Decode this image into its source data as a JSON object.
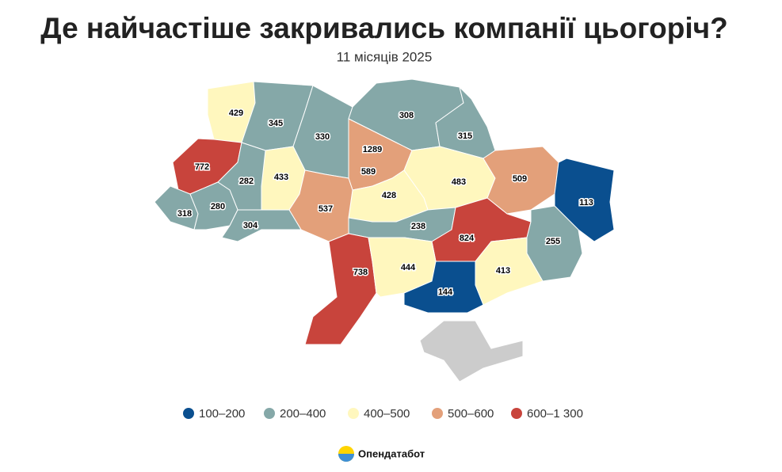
{
  "title": "Де найчастіше закривались компанії цьогоріч?",
  "subtitle": "11 місяців 2025",
  "regions": [
    {
      "value": 429,
      "color": "#fff7be"
    },
    {
      "value": 345,
      "color": "#85a8a8"
    },
    {
      "value": 330,
      "color": "#85a8a8"
    },
    {
      "value": 308,
      "color": "#85a8a8"
    },
    {
      "value": 315,
      "color": "#85a8a8"
    },
    {
      "value": 772,
      "color": "#c8443c"
    },
    {
      "value": 1289,
      "color": "#c8443c"
    },
    {
      "value": 589,
      "color": "#e3a07a"
    },
    {
      "value": 433,
      "color": "#fff7be"
    },
    {
      "value": 282,
      "color": "#85a8a8"
    },
    {
      "value": 483,
      "color": "#fff7be"
    },
    {
      "value": 509,
      "color": "#e3a07a"
    },
    {
      "value": 113,
      "color": "#0a4f8f"
    },
    {
      "value": 428,
      "color": "#fff7be"
    },
    {
      "value": 537,
      "color": "#e3a07a"
    },
    {
      "value": 318,
      "color": "#85a8a8"
    },
    {
      "value": 280,
      "color": "#85a8a8"
    },
    {
      "value": 304,
      "color": "#85a8a8"
    },
    {
      "value": 238,
      "color": "#85a8a8"
    },
    {
      "value": 824,
      "color": "#c8443c"
    },
    {
      "value": 255,
      "color": "#85a8a8"
    },
    {
      "value": 738,
      "color": "#c8443c"
    },
    {
      "value": 444,
      "color": "#fff7be"
    },
    {
      "value": 413,
      "color": "#fff7be"
    },
    {
      "value": 144,
      "color": "#0a4f8f"
    }
  ],
  "legend": [
    {
      "label": "100–200",
      "color": "#0a4f8f"
    },
    {
      "label": "200–400",
      "color": "#85a8a8"
    },
    {
      "label": "400–500",
      "color": "#fff7be"
    },
    {
      "label": "500–600",
      "color": "#e3a07a"
    },
    {
      "label": "600–1 300",
      "color": "#c8443c"
    }
  ],
  "brand": "Опендатабот"
}
